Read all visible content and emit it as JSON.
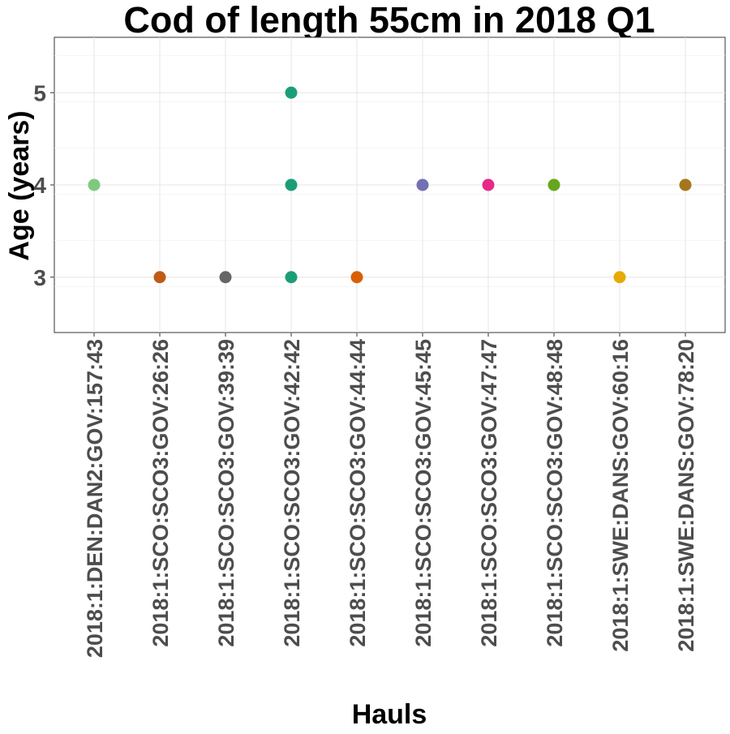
{
  "chart_data": {
    "type": "scatter",
    "title": "Cod of length 55cm in 2018 Q1",
    "xlabel": "Hauls",
    "ylabel": "Age (years)",
    "categories": [
      "2018:1:DEN:DAN2:GOV:157:43",
      "2018:1:SCO:SCO3:GOV:26:26",
      "2018:1:SCO:SCO3:GOV:39:39",
      "2018:1:SCO:SCO3:GOV:42:42",
      "2018:1:SCO:SCO3:GOV:44:44",
      "2018:1:SCO:SCO3:GOV:45:45",
      "2018:1:SCO:SCO3:GOV:47:47",
      "2018:1:SCO:SCO3:GOV:48:48",
      "2018:1:SWE:DANS:GOV:60:16",
      "2018:1:SWE:DANS:GOV:78:20"
    ],
    "points": [
      {
        "x": "2018:1:DEN:DAN2:GOV:157:43",
        "y": 4,
        "color": "#7fc97f"
      },
      {
        "x": "2018:1:SCO:SCO3:GOV:26:26",
        "y": 3,
        "color": "#bf5b17"
      },
      {
        "x": "2018:1:SCO:SCO3:GOV:39:39",
        "y": 3,
        "color": "#666666"
      },
      {
        "x": "2018:1:SCO:SCO3:GOV:42:42",
        "y": 5,
        "color": "#1b9e77"
      },
      {
        "x": "2018:1:SCO:SCO3:GOV:42:42",
        "y": 4,
        "color": "#1b9e77"
      },
      {
        "x": "2018:1:SCO:SCO3:GOV:42:42",
        "y": 3,
        "color": "#1b9e77"
      },
      {
        "x": "2018:1:SCO:SCO3:GOV:44:44",
        "y": 3,
        "color": "#d95f02"
      },
      {
        "x": "2018:1:SCO:SCO3:GOV:45:45",
        "y": 4,
        "color": "#7570b3"
      },
      {
        "x": "2018:1:SCO:SCO3:GOV:47:47",
        "y": 4,
        "color": "#e7298a"
      },
      {
        "x": "2018:1:SCO:SCO3:GOV:48:48",
        "y": 4,
        "color": "#66a61e"
      },
      {
        "x": "2018:1:SWE:DANS:GOV:60:16",
        "y": 3,
        "color": "#e6ab02"
      },
      {
        "x": "2018:1:SWE:DANS:GOV:78:20",
        "y": 4,
        "color": "#a6761d"
      }
    ],
    "yticks": [
      3,
      4,
      5
    ],
    "ylim": [
      2.4,
      5.6
    ],
    "grid": true,
    "legend": "none"
  }
}
